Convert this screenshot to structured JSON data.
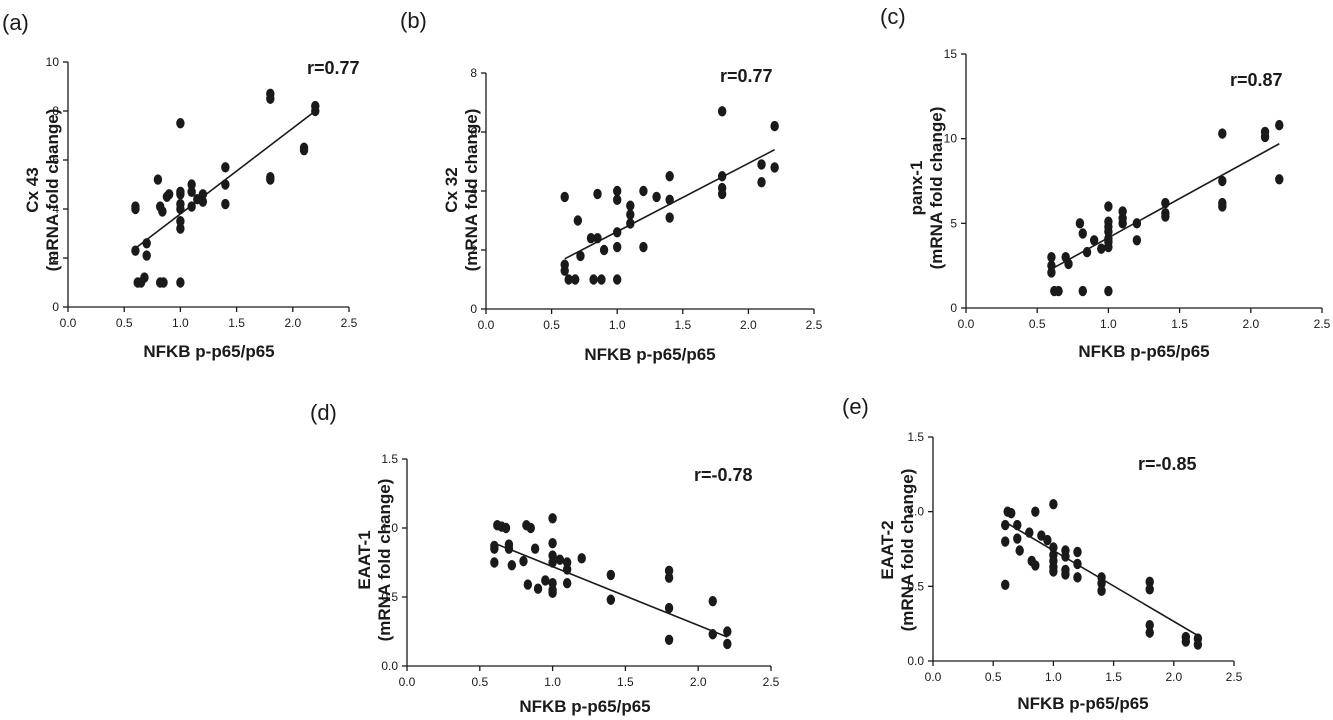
{
  "chart_data": [
    {
      "panel": "(a)",
      "type": "scatter",
      "xlabel": "NFKB p-p65/p65",
      "ylabel_lines": [
        "Cx 43",
        "(mRNA fold change)"
      ],
      "r_label": "r=0.77",
      "xlim": [
        0.0,
        2.5
      ],
      "ylim": [
        0,
        10
      ],
      "xticks": [
        "0.0",
        "0.5",
        "1.0",
        "1.5",
        "2.0",
        "2.5"
      ],
      "yticks": [
        "0",
        "2",
        "4",
        "6",
        "8",
        "10"
      ],
      "fit": [
        [
          0.6,
          2.4
        ],
        [
          2.2,
          8.0
        ]
      ],
      "points": [
        [
          0.6,
          4.1
        ],
        [
          0.6,
          4.0
        ],
        [
          0.6,
          2.3
        ],
        [
          0.62,
          1.0
        ],
        [
          0.65,
          1.0
        ],
        [
          0.68,
          1.2
        ],
        [
          0.7,
          2.6
        ],
        [
          0.7,
          2.1
        ],
        [
          0.8,
          5.2
        ],
        [
          0.82,
          4.1
        ],
        [
          0.84,
          3.9
        ],
        [
          0.82,
          1.0
        ],
        [
          0.85,
          1.0
        ],
        [
          0.88,
          4.5
        ],
        [
          0.9,
          4.6
        ],
        [
          1.0,
          7.5
        ],
        [
          1.0,
          4.7
        ],
        [
          1.0,
          4.6
        ],
        [
          1.0,
          4.2
        ],
        [
          1.0,
          4.0
        ],
        [
          1.0,
          3.5
        ],
        [
          1.0,
          3.2
        ],
        [
          1.0,
          1.0
        ],
        [
          1.1,
          4.7
        ],
        [
          1.1,
          5.0
        ],
        [
          1.1,
          4.1
        ],
        [
          1.15,
          4.4
        ],
        [
          1.2,
          4.6
        ],
        [
          1.2,
          4.3
        ],
        [
          1.4,
          5.7
        ],
        [
          1.4,
          5.0
        ],
        [
          1.4,
          4.2
        ],
        [
          1.8,
          8.7
        ],
        [
          1.8,
          8.5
        ],
        [
          1.8,
          5.3
        ],
        [
          1.8,
          5.2
        ],
        [
          2.1,
          6.5
        ],
        [
          2.1,
          6.4
        ],
        [
          2.2,
          8.2
        ],
        [
          2.2,
          8.0
        ]
      ]
    },
    {
      "panel": "(b)",
      "type": "scatter",
      "xlabel": "NFKB p-p65/p65",
      "ylabel_lines": [
        "Cx 32",
        "(mRNA fold change)"
      ],
      "r_label": "r=0.77",
      "xlim": [
        0.0,
        2.5
      ],
      "ylim": [
        0,
        8
      ],
      "xticks": [
        "0.0",
        "0.5",
        "1.0",
        "1.5",
        "2.0",
        "2.5"
      ],
      "yticks": [
        "0",
        "2",
        "4",
        "6",
        "8"
      ],
      "fit": [
        [
          0.6,
          1.7
        ],
        [
          2.2,
          5.4
        ]
      ],
      "points": [
        [
          0.6,
          3.8
        ],
        [
          0.6,
          1.5
        ],
        [
          0.6,
          1.3
        ],
        [
          0.63,
          1.0
        ],
        [
          0.68,
          1.0
        ],
        [
          0.7,
          3.0
        ],
        [
          0.72,
          1.8
        ],
        [
          0.8,
          2.4
        ],
        [
          0.82,
          1.0
        ],
        [
          0.85,
          3.9
        ],
        [
          0.85,
          2.4
        ],
        [
          0.88,
          1.0
        ],
        [
          0.9,
          2.0
        ],
        [
          1.0,
          4.0
        ],
        [
          1.0,
          3.7
        ],
        [
          1.0,
          2.6
        ],
        [
          1.0,
          2.1
        ],
        [
          1.0,
          1.0
        ],
        [
          1.1,
          3.5
        ],
        [
          1.1,
          3.2
        ],
        [
          1.1,
          2.9
        ],
        [
          1.2,
          4.0
        ],
        [
          1.2,
          2.1
        ],
        [
          1.3,
          3.8
        ],
        [
          1.4,
          4.5
        ],
        [
          1.4,
          3.7
        ],
        [
          1.4,
          3.1
        ],
        [
          1.8,
          6.7
        ],
        [
          1.8,
          4.5
        ],
        [
          1.8,
          4.1
        ],
        [
          1.8,
          3.9
        ],
        [
          2.1,
          4.9
        ],
        [
          2.1,
          4.3
        ],
        [
          2.2,
          6.2
        ],
        [
          2.2,
          4.8
        ]
      ]
    },
    {
      "panel": "(c)",
      "type": "scatter",
      "xlabel": "NFKB p-p65/p65",
      "ylabel_lines": [
        "panx-1",
        "(mRNA fold change)"
      ],
      "r_label": "r=0.87",
      "xlim": [
        0.0,
        2.5
      ],
      "ylim": [
        0,
        15
      ],
      "xticks": [
        "0.0",
        "0.5",
        "1.0",
        "1.5",
        "2.0",
        "2.5"
      ],
      "yticks": [
        "0",
        "5",
        "10",
        "15"
      ],
      "fit": [
        [
          0.6,
          2.3
        ],
        [
          2.2,
          9.7
        ]
      ],
      "points": [
        [
          0.6,
          3.0
        ],
        [
          0.6,
          2.5
        ],
        [
          0.6,
          2.1
        ],
        [
          0.62,
          1.0
        ],
        [
          0.65,
          1.0
        ],
        [
          0.7,
          3.0
        ],
        [
          0.72,
          2.6
        ],
        [
          0.8,
          5.0
        ],
        [
          0.82,
          4.4
        ],
        [
          0.82,
          1.0
        ],
        [
          0.85,
          3.3
        ],
        [
          0.9,
          4.0
        ],
        [
          0.95,
          3.5
        ],
        [
          1.0,
          6.0
        ],
        [
          1.0,
          5.1
        ],
        [
          1.0,
          4.8
        ],
        [
          1.0,
          4.5
        ],
        [
          1.0,
          4.1
        ],
        [
          1.0,
          3.9
        ],
        [
          1.0,
          3.6
        ],
        [
          1.0,
          1.0
        ],
        [
          1.1,
          5.7
        ],
        [
          1.1,
          5.3
        ],
        [
          1.1,
          5.0
        ],
        [
          1.2,
          5.0
        ],
        [
          1.2,
          4.0
        ],
        [
          1.4,
          6.2
        ],
        [
          1.4,
          5.6
        ],
        [
          1.4,
          5.4
        ],
        [
          1.8,
          10.3
        ],
        [
          1.8,
          7.5
        ],
        [
          1.8,
          6.2
        ],
        [
          1.8,
          6.0
        ],
        [
          2.1,
          10.4
        ],
        [
          2.1,
          10.1
        ],
        [
          2.2,
          10.8
        ],
        [
          2.2,
          7.6
        ]
      ]
    },
    {
      "panel": "(d)",
      "type": "scatter",
      "xlabel": "NFKB p-p65/p65",
      "ylabel_lines": [
        "EAAT-1",
        "(mRNA fold change)"
      ],
      "r_label": "r=-0.78",
      "xlim": [
        0.0,
        2.5
      ],
      "ylim": [
        0.0,
        1.5
      ],
      "xticks": [
        "0.0",
        "0.5",
        "1.0",
        "1.5",
        "2.0",
        "2.5"
      ],
      "yticks": [
        "0.0",
        "0.5",
        "1.0",
        "1.5"
      ],
      "fit": [
        [
          0.6,
          0.89
        ],
        [
          2.2,
          0.21
        ]
      ],
      "points": [
        [
          0.6,
          0.87
        ],
        [
          0.6,
          0.85
        ],
        [
          0.6,
          0.75
        ],
        [
          0.62,
          1.02
        ],
        [
          0.65,
          1.01
        ],
        [
          0.68,
          1.0
        ],
        [
          0.7,
          0.88
        ],
        [
          0.7,
          0.85
        ],
        [
          0.72,
          0.73
        ],
        [
          0.8,
          0.76
        ],
        [
          0.82,
          1.02
        ],
        [
          0.83,
          0.59
        ],
        [
          0.85,
          1.0
        ],
        [
          0.88,
          0.85
        ],
        [
          0.9,
          0.56
        ],
        [
          0.95,
          0.62
        ],
        [
          1.0,
          1.07
        ],
        [
          1.0,
          0.89
        ],
        [
          1.0,
          0.8
        ],
        [
          1.0,
          0.75
        ],
        [
          1.0,
          0.6
        ],
        [
          1.0,
          0.55
        ],
        [
          1.0,
          0.53
        ],
        [
          1.05,
          0.77
        ],
        [
          1.1,
          0.75
        ],
        [
          1.1,
          0.7
        ],
        [
          1.1,
          0.6
        ],
        [
          1.2,
          0.78
        ],
        [
          1.4,
          0.66
        ],
        [
          1.4,
          0.48
        ],
        [
          1.8,
          0.69
        ],
        [
          1.8,
          0.64
        ],
        [
          1.8,
          0.42
        ],
        [
          1.8,
          0.19
        ],
        [
          2.1,
          0.47
        ],
        [
          2.1,
          0.23
        ],
        [
          2.2,
          0.25
        ],
        [
          2.2,
          0.16
        ]
      ]
    },
    {
      "panel": "(e)",
      "type": "scatter",
      "xlabel": "NFKB p-p65/p65",
      "ylabel_lines": [
        "EAAT-2",
        "(mRNA fold change)"
      ],
      "r_label": "r=-0.85",
      "xlim": [
        0.0,
        2.5
      ],
      "ylim": [
        0.0,
        1.5
      ],
      "xticks": [
        "0.0",
        "0.5",
        "1.0",
        "1.5",
        "2.0",
        "2.5"
      ],
      "yticks": [
        "0.0",
        "0.5",
        "1.0",
        "1.5"
      ],
      "fit": [
        [
          0.6,
          0.93
        ],
        [
          2.2,
          0.17
        ]
      ],
      "points": [
        [
          0.6,
          0.91
        ],
        [
          0.6,
          0.8
        ],
        [
          0.6,
          0.51
        ],
        [
          0.62,
          1.0
        ],
        [
          0.65,
          0.99
        ],
        [
          0.7,
          0.91
        ],
        [
          0.7,
          0.82
        ],
        [
          0.72,
          0.74
        ],
        [
          0.8,
          0.86
        ],
        [
          0.82,
          0.67
        ],
        [
          0.85,
          0.64
        ],
        [
          0.85,
          1.0
        ],
        [
          0.9,
          0.84
        ],
        [
          0.95,
          0.81
        ],
        [
          1.0,
          1.05
        ],
        [
          1.0,
          0.76
        ],
        [
          1.0,
          0.71
        ],
        [
          1.0,
          0.67
        ],
        [
          1.0,
          0.63
        ],
        [
          1.0,
          0.6
        ],
        [
          1.1,
          0.74
        ],
        [
          1.1,
          0.7
        ],
        [
          1.1,
          0.61
        ],
        [
          1.1,
          0.58
        ],
        [
          1.2,
          0.73
        ],
        [
          1.2,
          0.65
        ],
        [
          1.2,
          0.56
        ],
        [
          1.4,
          0.56
        ],
        [
          1.4,
          0.52
        ],
        [
          1.4,
          0.47
        ],
        [
          1.8,
          0.53
        ],
        [
          1.8,
          0.48
        ],
        [
          1.8,
          0.24
        ],
        [
          1.8,
          0.19
        ],
        [
          2.1,
          0.16
        ],
        [
          2.1,
          0.13
        ],
        [
          2.2,
          0.15
        ],
        [
          2.2,
          0.11
        ]
      ]
    }
  ]
}
